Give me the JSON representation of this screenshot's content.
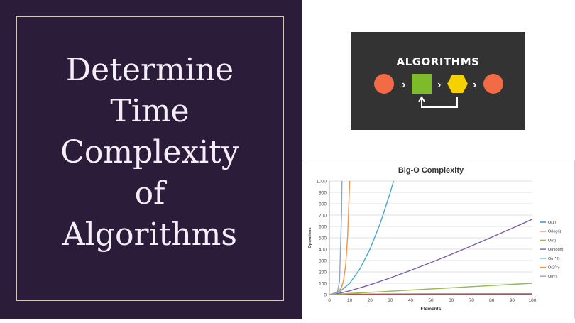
{
  "title_lines": [
    "Determine",
    "Time",
    "Complexity",
    "of",
    "Algorithms"
  ],
  "card": {
    "label": "ALGORITHMS"
  },
  "colors": {
    "panel_bg": "#2b1c39",
    "frame": "#d9c8ad",
    "card_bg": "#333333",
    "circle": "#f26b45",
    "square": "#7dbb2a",
    "hexagon": "#f6d100"
  },
  "chart_data": {
    "type": "line",
    "title": "Big-O Complexity",
    "xlabel": "Elements",
    "ylabel": "Operations",
    "xlim": [
      0,
      100
    ],
    "ylim": [
      0,
      1000
    ],
    "x_ticks": [
      "0",
      "10",
      "20",
      "30",
      "40",
      "50",
      "60",
      "70",
      "80",
      "90",
      "100"
    ],
    "y_ticks": [
      "0",
      "100",
      "200",
      "300",
      "400",
      "500",
      "600",
      "700",
      "800",
      "900",
      "1000"
    ],
    "grid": true,
    "legend_position": "right",
    "series": [
      {
        "name": "O(1)",
        "color": "#4a7ebb",
        "points": [
          [
            0,
            1
          ],
          [
            100,
            1
          ]
        ]
      },
      {
        "name": "O(logn)",
        "color": "#be4b48",
        "points": [
          [
            1,
            0
          ],
          [
            2,
            1
          ],
          [
            5,
            2.3
          ],
          [
            10,
            3.3
          ],
          [
            20,
            4.3
          ],
          [
            50,
            5.6
          ],
          [
            100,
            6.6
          ]
        ]
      },
      {
        "name": "O(n)",
        "color": "#98b954",
        "points": [
          [
            0,
            0
          ],
          [
            100,
            100
          ]
        ]
      },
      {
        "name": "O(nlogn)",
        "color": "#7d5fa0",
        "points": [
          [
            1,
            0
          ],
          [
            5,
            11.6
          ],
          [
            10,
            33
          ],
          [
            20,
            86
          ],
          [
            30,
            147
          ],
          [
            40,
            213
          ],
          [
            50,
            282
          ],
          [
            60,
            354
          ],
          [
            70,
            429
          ],
          [
            80,
            506
          ],
          [
            90,
            584
          ],
          [
            100,
            664
          ]
        ]
      },
      {
        "name": "O(n^2)",
        "color": "#46aac5",
        "points": [
          [
            0,
            0
          ],
          [
            5,
            25
          ],
          [
            10,
            100
          ],
          [
            15,
            225
          ],
          [
            20,
            400
          ],
          [
            25,
            625
          ],
          [
            30,
            900
          ],
          [
            31.6,
            1000
          ]
        ]
      },
      {
        "name": "O(2^n)",
        "color": "#f69240",
        "points": [
          [
            0,
            1
          ],
          [
            2,
            4
          ],
          [
            4,
            16
          ],
          [
            6,
            64
          ],
          [
            7,
            128
          ],
          [
            8,
            256
          ],
          [
            9,
            512
          ],
          [
            10,
            1000
          ]
        ]
      },
      {
        "name": "O(n!)",
        "color": "#8ea5cb",
        "points": [
          [
            1,
            1
          ],
          [
            2,
            2
          ],
          [
            3,
            6
          ],
          [
            4,
            24
          ],
          [
            5,
            120
          ],
          [
            6,
            720
          ],
          [
            6.2,
            1000
          ]
        ]
      }
    ]
  }
}
